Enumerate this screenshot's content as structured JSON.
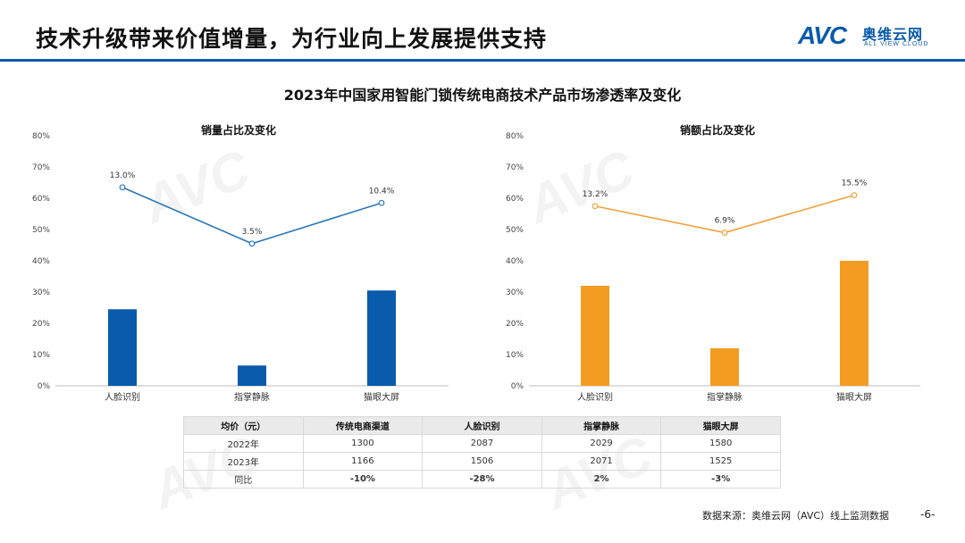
{
  "header": {
    "title": "技术升级带来价值增量，为行业向上发展提供支持",
    "logo_text": "AVC",
    "logo_cn": "奥维云网",
    "logo_en": "ALL VIEW CLOUD"
  },
  "section_title": "2023年中国家用智能门锁传统电商技术产品市场渗透率及变化",
  "colors": {
    "blue": "#0a5bab",
    "orange": "#f39c22",
    "line_orange": "#f0a23c",
    "line_blue": "#2a77b8"
  },
  "chart_data": [
    {
      "type": "bar",
      "title": "销量占比及变化",
      "categories": [
        "人脸识别",
        "指掌静脉",
        "猫眼大屏"
      ],
      "ylim": [
        0,
        80
      ],
      "yticks": [
        "0%",
        "10%",
        "20%",
        "30%",
        "40%",
        "50%",
        "60%",
        "70%",
        "80%"
      ],
      "series": [
        {
          "values": [
            24.5,
            6.5,
            30.5
          ],
          "color": "#0a5bab"
        },
        {
          "type": "line",
          "values": [
            13.0,
            3.5,
            10.4
          ],
          "labels": [
            "13.0%",
            "3.5%",
            "10.4%"
          ],
          "plot_y": [
            63.5,
            45.5,
            58.5
          ],
          "color": "#2a77b8"
        }
      ]
    },
    {
      "type": "bar",
      "title": "销额占比及变化",
      "categories": [
        "人脸识别",
        "指掌静脉",
        "猫眼大屏"
      ],
      "ylim": [
        0,
        80
      ],
      "yticks": [
        "0%",
        "10%",
        "20%",
        "30%",
        "40%",
        "50%",
        "60%",
        "70%",
        "80%"
      ],
      "series": [
        {
          "values": [
            32,
            12,
            40
          ],
          "color": "#f39c22"
        },
        {
          "type": "line",
          "values": [
            13.2,
            6.9,
            15.5
          ],
          "labels": [
            "13.2%",
            "6.9%",
            "15.5%"
          ],
          "plot_y": [
            57.5,
            49,
            61
          ],
          "color": "#f0a23c"
        }
      ]
    }
  ],
  "table": {
    "headers": [
      "均价（元）",
      "传统电商渠道",
      "人脸识别",
      "指掌静脉",
      "猫眼大屏"
    ],
    "rows": [
      {
        "label": "2022年",
        "cells": [
          "1300",
          "2087",
          "2029",
          "1580"
        ]
      },
      {
        "label": "2023年",
        "cells": [
          "1166",
          "1506",
          "2071",
          "1525"
        ]
      },
      {
        "label": "同比",
        "cells": [
          "-10%",
          "-28%",
          "2%",
          "-3%"
        ],
        "signs": [
          "neg",
          "neg",
          "pos",
          "neg"
        ]
      }
    ]
  },
  "footer": {
    "source": "数据来源：奥维云网（AVC）线上监测数据",
    "page": "-6-"
  }
}
